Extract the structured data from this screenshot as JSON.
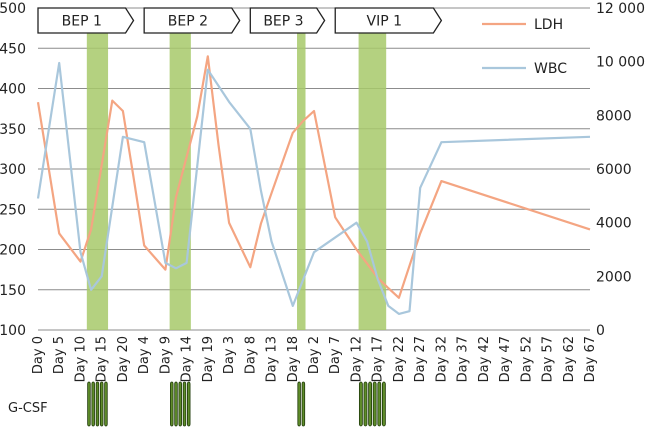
{
  "chart_data": {
    "type": "line",
    "categories": [
      "Day 0",
      "Day 5",
      "Day 10",
      "Day 15",
      "Day 20",
      "Day 4",
      "Day 9",
      "Day 14",
      "Day 19",
      "Day 3",
      "Day 8",
      "Day 13",
      "Day 18",
      "Day 2",
      "Day 7",
      "Day 12",
      "Day 17",
      "Day 22",
      "Day 27",
      "Day 32",
      "Day 37",
      "Day 42",
      "Day 47",
      "Day 52",
      "Day 57",
      "Day 62",
      "Day 67"
    ],
    "ylim_left": [
      100,
      500
    ],
    "ylim_right": [
      0,
      12000
    ],
    "yticks_left": [
      100,
      150,
      200,
      250,
      300,
      350,
      400,
      450,
      500
    ],
    "yticks_right": [
      0,
      2000,
      4000,
      6000,
      8000,
      10000,
      12000
    ],
    "yticks_right_labels": [
      "0",
      "2000",
      "4000",
      "6000",
      "8000",
      "10 000",
      "12 000"
    ],
    "grid": true,
    "legend_position": "top-right",
    "series": [
      {
        "name": "LDH",
        "axis": "left",
        "color": "#f4a582",
        "points": [
          [
            0,
            383
          ],
          [
            1,
            220
          ],
          [
            2,
            185
          ],
          [
            2.5,
            225
          ],
          [
            3.5,
            385
          ],
          [
            4,
            372
          ],
          [
            4.5,
            290
          ],
          [
            5,
            205
          ],
          [
            6,
            175
          ],
          [
            6.5,
            265
          ],
          [
            7.5,
            365
          ],
          [
            8,
            440
          ],
          [
            8.5,
            330
          ],
          [
            9,
            233
          ],
          [
            10,
            178
          ],
          [
            10.5,
            232
          ],
          [
            11,
            270
          ],
          [
            12,
            345
          ],
          [
            12.5,
            360
          ],
          [
            13,
            372
          ],
          [
            14,
            240
          ],
          [
            15,
            200
          ],
          [
            16,
            165
          ],
          [
            16.5,
            152
          ],
          [
            17,
            140
          ],
          [
            18,
            220
          ],
          [
            19,
            285
          ],
          [
            26,
            225
          ]
        ]
      },
      {
        "name": "WBC",
        "axis": "right",
        "color": "#a9c7dc",
        "points": [
          [
            0,
            4900
          ],
          [
            1,
            9950
          ],
          [
            2,
            2900
          ],
          [
            2.5,
            1500
          ],
          [
            3,
            2000
          ],
          [
            4,
            7200
          ],
          [
            5,
            7000
          ],
          [
            6,
            2500
          ],
          [
            6.5,
            2300
          ],
          [
            7,
            2500
          ],
          [
            8,
            9700
          ],
          [
            9,
            8500
          ],
          [
            10,
            7500
          ],
          [
            10.5,
            5200
          ],
          [
            11,
            3300
          ],
          [
            12,
            900
          ],
          [
            13,
            2900
          ],
          [
            15,
            4000
          ],
          [
            15.5,
            3300
          ],
          [
            16,
            1900
          ],
          [
            16.5,
            900
          ],
          [
            17,
            600
          ],
          [
            17.5,
            700
          ],
          [
            18,
            5300
          ],
          [
            19,
            7000
          ],
          [
            26,
            7200
          ]
        ]
      }
    ],
    "cycles": [
      {
        "label": "BEP 1",
        "start": 0,
        "end": 4.5
      },
      {
        "label": "BEP 2",
        "start": 5,
        "end": 9.5
      },
      {
        "label": "BEP 3",
        "start": 10,
        "end": 13.5
      },
      {
        "label": "VIP 1",
        "start": 14,
        "end": 19
      }
    ],
    "gcsf_label": "G-CSF",
    "gcsf_periods": [
      {
        "start": 2.3,
        "end": 3.3,
        "doses": 5
      },
      {
        "start": 6.2,
        "end": 7.2,
        "doses": 5
      },
      {
        "start": 12.2,
        "end": 12.6,
        "doses": 2
      },
      {
        "start": 15.1,
        "end": 16.4,
        "doses": 6
      }
    ]
  }
}
